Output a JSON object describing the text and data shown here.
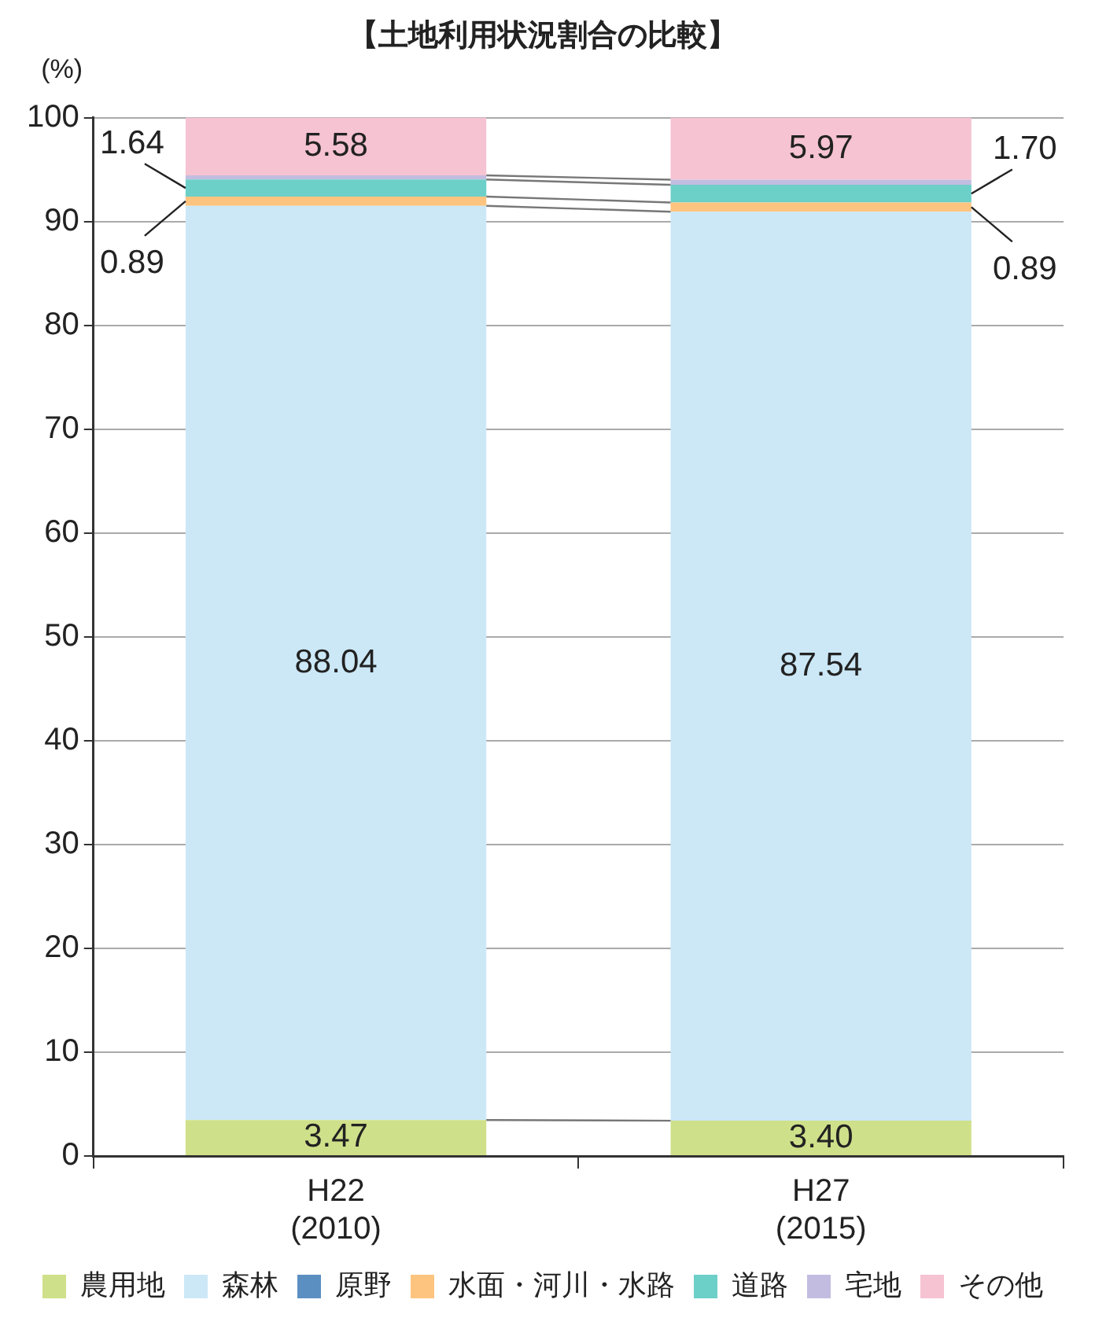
{
  "chart_data": {
    "type": "bar",
    "title": "【土地利用状況割合の比較】",
    "ylabel": "(%)",
    "categories": [
      "H22\n(2010)",
      "H27\n(2015)"
    ],
    "stacked": true,
    "ylim": [
      0,
      100
    ],
    "yticks": [
      0,
      10,
      20,
      30,
      40,
      50,
      60,
      70,
      80,
      90,
      100
    ],
    "grid": "y",
    "legend": "bottom",
    "series": [
      {
        "name": "農用地",
        "color": "#cfe08a",
        "values": [
          3.47,
          3.4
        ],
        "value_labels": [
          "3.47",
          "3.40"
        ]
      },
      {
        "name": "森林",
        "color": "#cce8f7",
        "values": [
          88.04,
          87.54
        ],
        "value_labels": [
          "88.04",
          "87.54"
        ]
      },
      {
        "name": "原野",
        "color": "#5b8fc2",
        "values": [
          0,
          0
        ]
      },
      {
        "name": "水面・河川・水路",
        "color": "#fdc47f",
        "values": [
          0.89,
          0.89
        ],
        "value_labels": [
          "0.89",
          "0.89"
        ]
      },
      {
        "name": "道路",
        "color": "#6ccfc8",
        "values": [
          1.64,
          1.7
        ],
        "value_labels": [
          "1.64",
          "1.70"
        ]
      },
      {
        "name": "宅地",
        "color": "#c2bde0",
        "values": [
          0.4,
          0.5
        ]
      },
      {
        "name": "その他",
        "color": "#f6c3d3",
        "values": [
          5.58,
          5.97
        ],
        "value_labels": [
          "5.58",
          "5.97"
        ]
      }
    ]
  }
}
